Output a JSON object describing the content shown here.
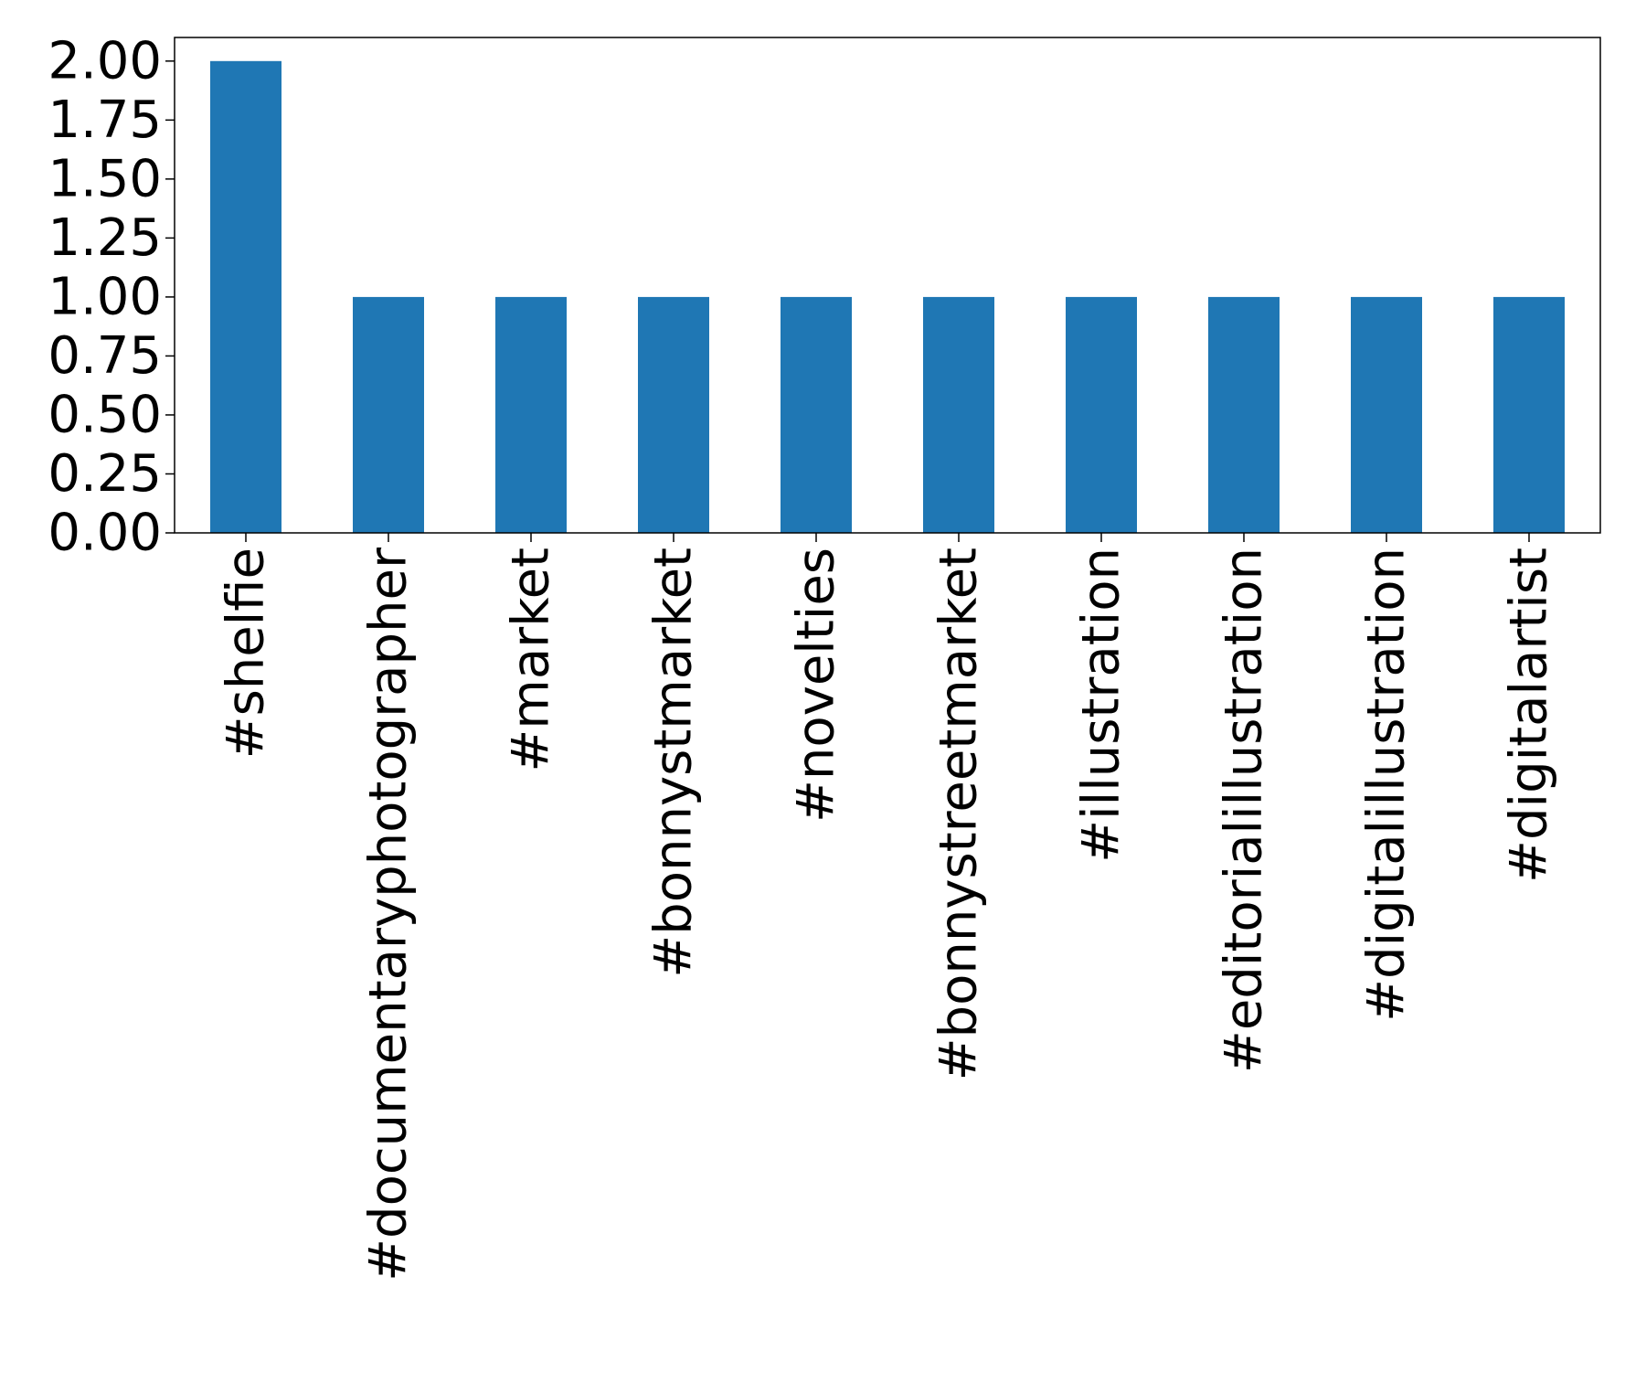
{
  "chart_data": {
    "type": "bar",
    "title": "",
    "xlabel": "",
    "ylabel": "",
    "categories": [
      "#shelfie",
      "#documentaryphotographer",
      "#market",
      "#bonnystmarket",
      "#novelties",
      "#bonnystreetmarket",
      "#illustration",
      "#editorialillustration",
      "#digitalillustration",
      "#digitalartist"
    ],
    "values": [
      2,
      1,
      1,
      1,
      1,
      1,
      1,
      1,
      1,
      1
    ],
    "ylim": [
      0,
      2.1
    ],
    "yticks": [
      "0.00",
      "0.25",
      "0.50",
      "0.75",
      "1.00",
      "1.25",
      "1.50",
      "1.75",
      "2.00"
    ],
    "grid": false,
    "legend": "none",
    "bar_color": "#1f77b4"
  }
}
